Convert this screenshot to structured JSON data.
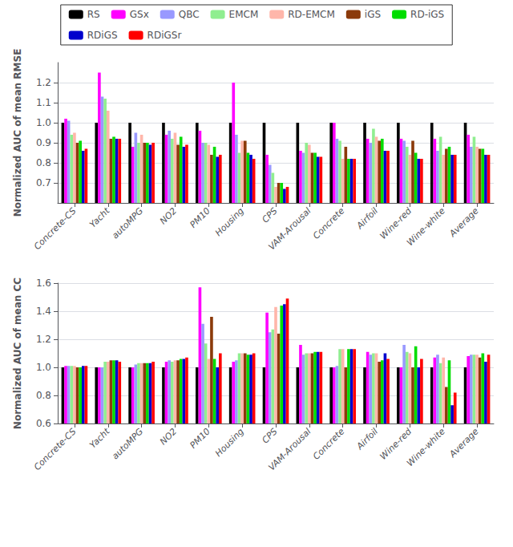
{
  "chart_data": [
    {
      "type": "bar",
      "ylabel": "Normalized AUC of mean RMSE",
      "categories": [
        "Concrete-CS",
        "Yacht",
        "autoMPG",
        "NO2",
        "PM10",
        "Housing",
        "CPS",
        "VAM-Arousal",
        "Concrete",
        "Airfoil",
        "Wine-red",
        "Wine-white",
        "Average"
      ],
      "series": [
        {
          "name": "RS",
          "color": "#000000",
          "values": [
            1.0,
            1.0,
            1.0,
            1.0,
            1.0,
            1.0,
            1.0,
            1.0,
            1.0,
            1.0,
            1.0,
            1.0,
            1.0
          ]
        },
        {
          "name": "GSx",
          "color": "#ff00ff",
          "values": [
            1.02,
            1.25,
            0.88,
            0.94,
            0.96,
            1.2,
            0.84,
            0.86,
            1.0,
            0.92,
            0.92,
            0.92,
            0.94
          ]
        },
        {
          "name": "QBC",
          "color": "#9999ff",
          "values": [
            1.01,
            1.13,
            0.95,
            0.96,
            0.9,
            0.94,
            0.79,
            0.85,
            0.92,
            0.9,
            0.91,
            0.86,
            0.88
          ]
        },
        {
          "name": "EMCM",
          "color": "#90ee90",
          "values": [
            0.94,
            1.12,
            0.9,
            0.92,
            0.9,
            0.85,
            0.75,
            0.9,
            0.91,
            0.97,
            0.88,
            0.93,
            0.93
          ]
        },
        {
          "name": "RD-EMCM",
          "color": "#ffb6aa",
          "values": [
            0.95,
            1.06,
            0.94,
            0.95,
            0.89,
            0.91,
            0.68,
            0.89,
            0.82,
            0.93,
            0.84,
            0.84,
            0.88
          ]
        },
        {
          "name": "iGS",
          "color": "#8b3a0a",
          "values": [
            0.9,
            0.92,
            0.9,
            0.89,
            0.84,
            0.91,
            0.7,
            0.85,
            0.88,
            0.91,
            0.91,
            0.87,
            0.87
          ]
        },
        {
          "name": "RD-iGS",
          "color": "#00dd00",
          "values": [
            0.91,
            0.93,
            0.9,
            0.93,
            0.88,
            0.85,
            0.7,
            0.85,
            0.82,
            0.92,
            0.85,
            0.88,
            0.87
          ]
        },
        {
          "name": "RDiGS",
          "color": "#0000cc",
          "values": [
            0.86,
            0.92,
            0.89,
            0.88,
            0.83,
            0.84,
            0.67,
            0.83,
            0.82,
            0.86,
            0.82,
            0.84,
            0.84
          ]
        },
        {
          "name": "RDiGSr",
          "color": "#ff0000",
          "values": [
            0.87,
            0.92,
            0.9,
            0.89,
            0.84,
            0.82,
            0.68,
            0.83,
            0.82,
            0.86,
            0.82,
            0.84,
            0.84
          ]
        }
      ],
      "ylim": [
        0.6,
        1.3
      ],
      "yticks": [
        0.7,
        0.8,
        0.9,
        {
          "value": 1.0,
          "label": "1.0"
        },
        1.1,
        1.2
      ],
      "grid": true,
      "legend": "top"
    },
    {
      "type": "bar",
      "ylabel": "Normalized AUC of mean CC",
      "categories": [
        "Concrete-CS",
        "Yacht",
        "autoMPG",
        "NO2",
        "PM10",
        "Housing",
        "CPS",
        "VAM-Arousal",
        "Concrete",
        "Airfoil",
        "Wine-red",
        "Wine-white",
        "Average"
      ],
      "series": [
        {
          "name": "RS",
          "color": "#000000",
          "values": [
            1.0,
            1.0,
            1.0,
            1.0,
            1.0,
            1.0,
            1.0,
            1.0,
            1.0,
            1.0,
            1.0,
            1.0,
            1.0
          ]
        },
        {
          "name": "GSx",
          "color": "#ff00ff",
          "values": [
            1.01,
            1.0,
            1.0,
            1.04,
            1.57,
            1.04,
            1.39,
            1.16,
            1.0,
            1.11,
            1.0,
            1.07,
            1.08
          ]
        },
        {
          "name": "QBC",
          "color": "#9999ff",
          "values": [
            1.01,
            1.0,
            1.02,
            1.05,
            1.31,
            1.05,
            1.25,
            1.09,
            1.01,
            1.09,
            1.16,
            1.09,
            1.09
          ]
        },
        {
          "name": "EMCM",
          "color": "#90ee90",
          "values": [
            1.01,
            1.04,
            1.03,
            1.04,
            1.17,
            1.1,
            1.27,
            1.1,
            1.13,
            1.1,
            1.11,
            1.03,
            1.09
          ]
        },
        {
          "name": "RD-EMCM",
          "color": "#ffb6aa",
          "values": [
            1.01,
            1.04,
            1.03,
            1.05,
            1.06,
            1.1,
            1.43,
            1.1,
            1.13,
            1.1,
            1.1,
            1.07,
            1.09
          ]
        },
        {
          "name": "iGS",
          "color": "#8b3a0a",
          "values": [
            1.0,
            1.05,
            1.03,
            1.05,
            1.36,
            1.1,
            1.24,
            1.1,
            1.0,
            1.04,
            1.0,
            0.86,
            1.07
          ]
        },
        {
          "name": "RD-iGS",
          "color": "#00dd00",
          "values": [
            1.0,
            1.05,
            1.03,
            1.06,
            1.06,
            1.09,
            1.44,
            1.11,
            1.13,
            1.05,
            1.15,
            1.05,
            1.1
          ]
        },
        {
          "name": "RDiGS",
          "color": "#0000cc",
          "values": [
            1.01,
            1.05,
            1.03,
            1.06,
            1.0,
            1.09,
            1.45,
            1.11,
            1.13,
            1.1,
            1.0,
            0.73,
            1.04
          ]
        },
        {
          "name": "RDiGSr",
          "color": "#ff0000",
          "values": [
            1.01,
            1.04,
            1.04,
            1.07,
            1.1,
            1.1,
            1.49,
            1.11,
            1.13,
            1.06,
            1.06,
            0.82,
            1.09
          ]
        }
      ],
      "ylim": [
        0.6,
        1.6
      ],
      "yticks": [
        0.6,
        0.8,
        {
          "value": 1.0,
          "label": "1.0"
        },
        1.2,
        1.4,
        1.6
      ],
      "grid": true
    }
  ]
}
